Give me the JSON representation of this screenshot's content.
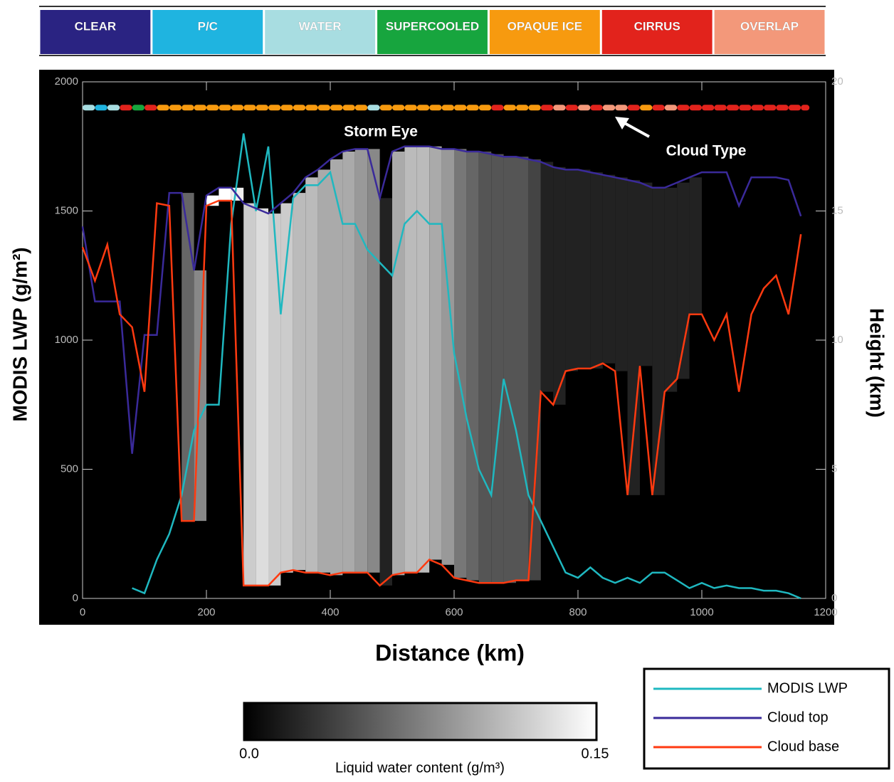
{
  "chart_data": {
    "type": "line",
    "cloud_type_legend": [
      {
        "label": "CLEAR",
        "color": "#2a2382"
      },
      {
        "label": "P/C",
        "color": "#1fb4e0"
      },
      {
        "label": "WATER",
        "color": "#a8dde1"
      },
      {
        "label": "SUPERCOOLED",
        "color": "#17a53e"
      },
      {
        "label": "OPAQUE ICE",
        "color": "#f79a0f"
      },
      {
        "label": "CIRRUS",
        "color": "#e2231c"
      },
      {
        "label": "OVERLAP",
        "color": "#f3987a"
      }
    ],
    "annotations": [
      "Storm Eye",
      "Cloud Type"
    ],
    "xlabel": "Distance (km)",
    "ylabel": "MODIS LWP (g/m²)",
    "y2label": "Height (km)",
    "xlim": [
      0,
      1200
    ],
    "xticks": [
      0,
      200,
      400,
      600,
      800,
      1000,
      1200
    ],
    "ylim": [
      0,
      2000
    ],
    "yticks": [
      0,
      500,
      1000,
      1500,
      2000
    ],
    "y2lim": [
      0,
      20
    ],
    "y2ticks": [
      0,
      5,
      10,
      15,
      20
    ],
    "x": [
      0,
      20,
      40,
      60,
      80,
      100,
      120,
      140,
      160,
      180,
      200,
      220,
      240,
      260,
      280,
      300,
      320,
      340,
      360,
      380,
      400,
      420,
      440,
      460,
      480,
      500,
      520,
      540,
      560,
      580,
      600,
      620,
      640,
      660,
      680,
      700,
      720,
      740,
      760,
      780,
      800,
      820,
      840,
      860,
      880,
      900,
      920,
      940,
      960,
      980,
      1000,
      1020,
      1040,
      1060,
      1080,
      1100,
      1120,
      1140,
      1160
    ],
    "series": [
      {
        "name": "MODIS LWP",
        "color": "#1fb8c0",
        "axis": "y",
        "values": [
          null,
          null,
          null,
          null,
          40,
          20,
          150,
          250,
          400,
          650,
          750,
          750,
          1450,
          1800,
          1500,
          1750,
          1100,
          1550,
          1600,
          1600,
          1650,
          1450,
          1450,
          1350,
          1300,
          1250,
          1450,
          1500,
          1450,
          1450,
          950,
          700,
          500,
          400,
          850,
          650,
          400,
          300,
          200,
          100,
          80,
          120,
          80,
          60,
          80,
          60,
          100,
          100,
          70,
          40,
          60,
          40,
          50,
          40,
          40,
          30,
          30,
          20,
          0
        ]
      },
      {
        "name": "Cloud top",
        "color": "#3a2a9a",
        "axis": "y2",
        "values": [
          14.4,
          11.5,
          11.5,
          11.5,
          5.6,
          10.2,
          10.2,
          15.7,
          15.7,
          12.7,
          15.6,
          15.9,
          15.9,
          15.3,
          15.1,
          14.9,
          15.3,
          15.7,
          16.3,
          16.6,
          17,
          17.3,
          17.4,
          17.4,
          15.5,
          17.3,
          17.5,
          17.5,
          17.5,
          17.4,
          17.4,
          17.3,
          17.3,
          17.2,
          17.1,
          17.1,
          17,
          16.9,
          16.7,
          16.6,
          16.6,
          16.5,
          16.4,
          16.3,
          16.2,
          16.1,
          15.9,
          15.9,
          16.1,
          16.3,
          16.5,
          16.5,
          16.5,
          15.2,
          16.3,
          16.3,
          16.3,
          16.2,
          14.8
        ]
      },
      {
        "name": "Cloud base",
        "color": "#ff3a10",
        "axis": "y2",
        "values": [
          13.6,
          12.3,
          13.7,
          11,
          10.5,
          8,
          15.3,
          15.2,
          3,
          3,
          15.2,
          15.4,
          15.4,
          0.5,
          0.5,
          0.5,
          1,
          1.1,
          1,
          1,
          0.9,
          1,
          1,
          1,
          0.5,
          0.9,
          1,
          1,
          1.5,
          1.3,
          0.8,
          0.7,
          0.6,
          0.6,
          0.6,
          0.7,
          0.7,
          8,
          7.5,
          8.8,
          8.9,
          8.9,
          9.1,
          8.8,
          4,
          9,
          4,
          8,
          8.5,
          11,
          11,
          10,
          11,
          8,
          11,
          12,
          12.5,
          11,
          14.1
        ]
      }
    ],
    "lwc": [
      0,
      0,
      0,
      0,
      0,
      0,
      0,
      0,
      0.06,
      0.08,
      0.15,
      0.15,
      0.14,
      0.12,
      0.13,
      0.12,
      0.12,
      0.11,
      0.11,
      0.1,
      0.1,
      0.1,
      0.09,
      0.08,
      0.02,
      0.1,
      0.11,
      0.11,
      0.1,
      0.09,
      0.07,
      0.06,
      0.05,
      0.05,
      0.05,
      0.05,
      0.04,
      0.02,
      0.02,
      0.02,
      0.02,
      0.02,
      0.02,
      0.02,
      0.02,
      0.02,
      0.02,
      0.02,
      0.02,
      0.02,
      0,
      0,
      0,
      0,
      0,
      0,
      0,
      0,
      0
    ],
    "cloud_type": [
      2,
      1,
      2,
      5,
      3,
      5,
      4,
      4,
      4,
      4,
      4,
      4,
      4,
      4,
      4,
      4,
      4,
      4,
      4,
      4,
      4,
      4,
      4,
      2,
      4,
      4,
      4,
      4,
      4,
      4,
      4,
      4,
      4,
      5,
      4,
      4,
      4,
      5,
      6,
      5,
      6,
      5,
      6,
      6,
      5,
      4,
      5,
      6,
      5,
      5,
      5,
      5,
      5,
      5,
      5,
      5,
      5,
      5,
      5
    ],
    "colorbar": {
      "label": "Liquid water content (g/m³)",
      "lim": [
        0,
        0.15
      ],
      "ticks": [
        {
          "value": 0,
          "label": "0.0"
        },
        0.15
      ]
    }
  }
}
